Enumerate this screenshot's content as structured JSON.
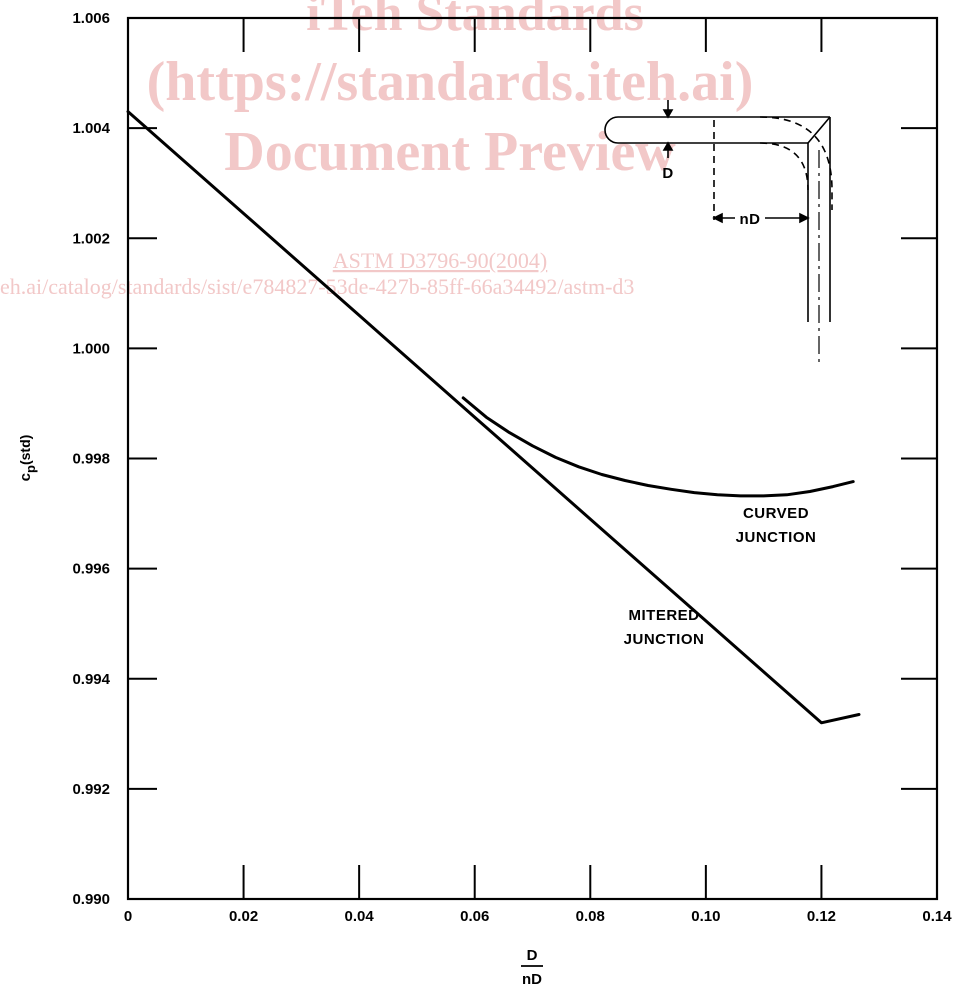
{
  "watermark": {
    "line1": "iTeh Standards",
    "line2": "(https://standards.iteh.ai)",
    "line3": "Document Preview",
    "line4": "ASTM D3796-90(2004)",
    "line5": "eh.ai/catalog/standards/sist/e784827-53de-427b-85ff-66a34492/astm-d3"
  },
  "chart_data": {
    "type": "line",
    "xlabel_numerator": "D",
    "xlabel_denominator": "nD",
    "ylabel_main": "c",
    "ylabel_sub": "p",
    "ylabel_suffix": "(std)",
    "xlim": [
      0,
      0.14
    ],
    "ylim": [
      0.99,
      1.006
    ],
    "x_ticks": [
      0,
      0.02,
      0.04,
      0.06,
      0.08,
      0.1,
      0.12,
      0.14
    ],
    "x_tick_labels": [
      "0",
      "0.02",
      "0.04",
      "0.06",
      "0.08",
      "0.10",
      "0.12",
      "0.14"
    ],
    "y_ticks": [
      0.99,
      0.992,
      0.994,
      0.996,
      0.998,
      1.0,
      1.002,
      1.004,
      1.006
    ],
    "y_tick_labels": [
      "0.990",
      "0.992",
      "0.994",
      "0.996",
      "0.998",
      "1.000",
      "1.002",
      "1.004",
      "1.006"
    ],
    "grid": false,
    "series": [
      {
        "name": "MITERED JUNCTION",
        "x": [
          0,
          0.02,
          0.04,
          0.06,
          0.08,
          0.1,
          0.12,
          0.1265
        ],
        "y": [
          1.0043,
          1.00245,
          1.0006,
          0.99875,
          0.9969,
          0.99505,
          0.9932,
          0.99335
        ]
      },
      {
        "name": "CURVED JUNCTION",
        "x": [
          0.058,
          0.062,
          0.066,
          0.07,
          0.074,
          0.078,
          0.082,
          0.086,
          0.09,
          0.094,
          0.098,
          0.102,
          0.106,
          0.11,
          0.114,
          0.118,
          0.122,
          0.1255
        ],
        "y": [
          0.9991,
          0.99875,
          0.99847,
          0.99823,
          0.99802,
          0.99785,
          0.99771,
          0.9976,
          0.99751,
          0.99744,
          0.99738,
          0.99734,
          0.99732,
          0.99732,
          0.99734,
          0.9974,
          0.99749,
          0.99758
        ]
      }
    ],
    "annotations": {
      "curved": [
        "CURVED",
        "JUNCTION"
      ],
      "mitered": [
        "MITERED",
        "JUNCTION"
      ],
      "inset_D": "D",
      "inset_nD": "nD"
    }
  }
}
